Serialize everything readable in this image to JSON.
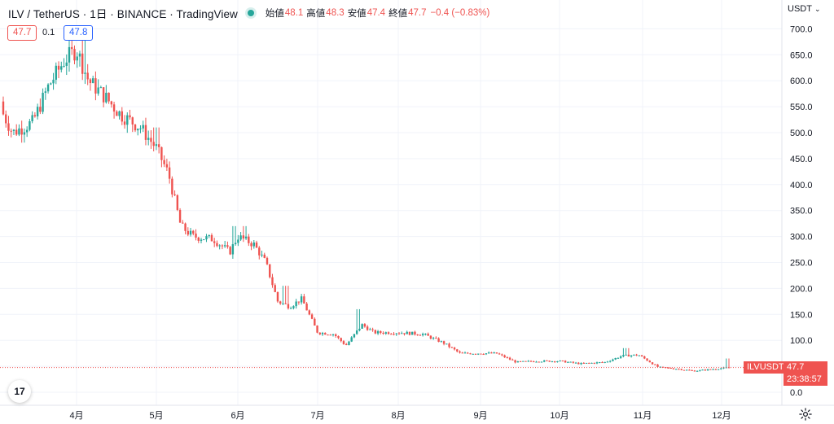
{
  "header": {
    "title": "ILV / TetherUS · 1日 · BINANCE · TradingView",
    "open_label": "始値",
    "open": "48.1",
    "high_label": "高値",
    "high": "48.3",
    "low_label": "安値",
    "low": "47.4",
    "close_label": "終値",
    "close": "47.7",
    "change": "−0.4 (−0.83%)"
  },
  "quote": {
    "bid": "47.7",
    "spread": "0.1",
    "ask": "47.8"
  },
  "currency": "USDT",
  "symbol_tag": "ILVUSDT",
  "last_price_tag": "47.7",
  "countdown": "23:38:57",
  "logo_text": "17",
  "colors": {
    "up": "#26a69a",
    "down": "#ef5350",
    "grid": "#f0f3fa",
    "last_line": "#ef5350"
  },
  "chart_data": {
    "type": "candlestick",
    "ylim": [
      0,
      720
    ],
    "y_ticks": [
      "0.0",
      "50.0",
      "100.0",
      "150.0",
      "200.0",
      "250.0",
      "300.0",
      "350.0",
      "400.0",
      "450.0",
      "500.0",
      "550.0",
      "600.0",
      "650.0",
      "700.0"
    ],
    "x_ticks": [
      "4月",
      "5月",
      "6月",
      "7月",
      "8月",
      "9月",
      "10月",
      "11月",
      "12月"
    ],
    "last_price": 47.7,
    "trend": [
      {
        "m": 3.0,
        "v": 560
      },
      {
        "m": 3.2,
        "v": 500
      },
      {
        "m": 3.45,
        "v": 520
      },
      {
        "m": 3.65,
        "v": 590
      },
      {
        "m": 3.85,
        "v": 640
      },
      {
        "m": 4.0,
        "v": 660
      },
      {
        "m": 4.15,
        "v": 600
      },
      {
        "m": 4.35,
        "v": 570
      },
      {
        "m": 4.55,
        "v": 535
      },
      {
        "m": 4.8,
        "v": 510
      },
      {
        "m": 5.0,
        "v": 470
      },
      {
        "m": 5.15,
        "v": 420
      },
      {
        "m": 5.3,
        "v": 320
      },
      {
        "m": 5.45,
        "v": 300
      },
      {
        "m": 5.7,
        "v": 295
      },
      {
        "m": 5.9,
        "v": 270
      },
      {
        "m": 6.0,
        "v": 300
      },
      {
        "m": 6.2,
        "v": 285
      },
      {
        "m": 6.35,
        "v": 250
      },
      {
        "m": 6.5,
        "v": 175
      },
      {
        "m": 6.65,
        "v": 165
      },
      {
        "m": 6.8,
        "v": 180
      },
      {
        "m": 7.0,
        "v": 115
      },
      {
        "m": 7.2,
        "v": 112
      },
      {
        "m": 7.35,
        "v": 90
      },
      {
        "m": 7.55,
        "v": 130
      },
      {
        "m": 7.7,
        "v": 115
      },
      {
        "m": 8.0,
        "v": 115
      },
      {
        "m": 8.3,
        "v": 112
      },
      {
        "m": 8.55,
        "v": 95
      },
      {
        "m": 8.75,
        "v": 75
      },
      {
        "m": 9.0,
        "v": 75
      },
      {
        "m": 9.2,
        "v": 75
      },
      {
        "m": 9.45,
        "v": 58
      },
      {
        "m": 9.7,
        "v": 60
      },
      {
        "m": 10.0,
        "v": 60
      },
      {
        "m": 10.25,
        "v": 55
      },
      {
        "m": 10.55,
        "v": 58
      },
      {
        "m": 10.75,
        "v": 70
      },
      {
        "m": 10.95,
        "v": 72
      },
      {
        "m": 11.2,
        "v": 48
      },
      {
        "m": 11.45,
        "v": 45
      },
      {
        "m": 11.65,
        "v": 41
      },
      {
        "m": 11.85,
        "v": 44
      },
      {
        "m": 12.1,
        "v": 47.7
      }
    ],
    "spikes": [
      {
        "m": 4.1,
        "v_high": 680
      },
      {
        "m": 5.0,
        "v_high": 510
      },
      {
        "m": 5.95,
        "v_high": 320
      },
      {
        "m": 6.1,
        "v_high": 320
      },
      {
        "m": 6.6,
        "v_high": 205
      },
      {
        "m": 7.5,
        "v_high": 160
      },
      {
        "m": 10.8,
        "v_high": 85
      },
      {
        "m": 12.08,
        "v_high": 65
      }
    ]
  }
}
